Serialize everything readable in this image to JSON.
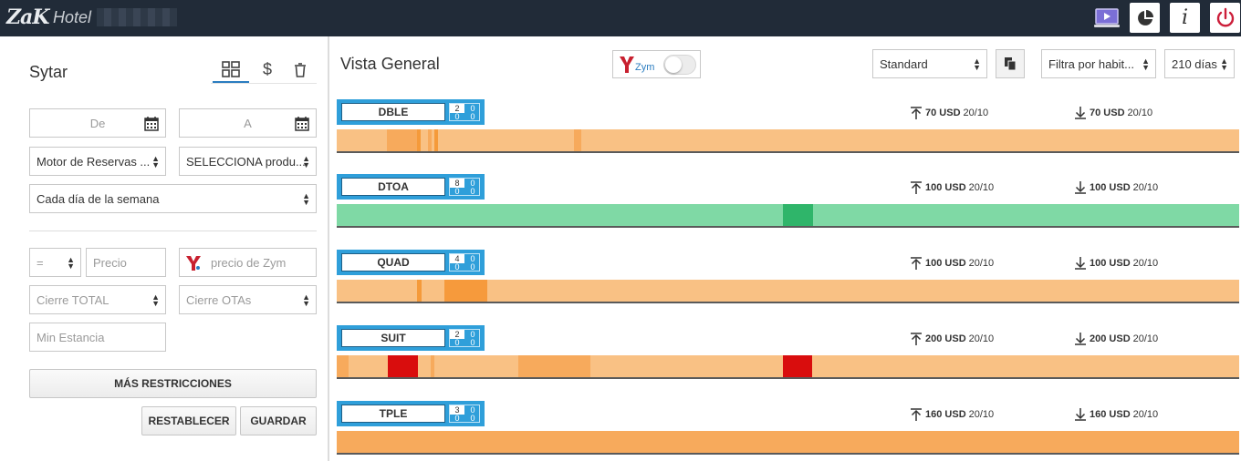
{
  "app": {
    "logo_text": "ZaK",
    "hotel_label": "Hotel"
  },
  "topbar": {
    "buttons": [
      {
        "name": "video-tutorial-button",
        "icon": "monitor-play-icon"
      },
      {
        "name": "reports-button",
        "icon": "pie-chart-icon"
      },
      {
        "name": "info-button",
        "icon": "info-icon",
        "label": "i"
      },
      {
        "name": "logout-button",
        "icon": "power-icon"
      }
    ]
  },
  "left_panel": {
    "title": "Sytar",
    "tabs": [
      {
        "name": "grid-view-tab",
        "icon": "grid-icon",
        "active": true
      },
      {
        "name": "rates-tab",
        "icon": "dollar-icon",
        "label": "$",
        "active": false
      },
      {
        "name": "delete-tab",
        "icon": "trash-icon",
        "active": false
      }
    ],
    "date_from_placeholder": "De",
    "date_to_placeholder": "A",
    "booking_engine_select": "Motor de Reservas ...",
    "product_select": "SELECCIONA produ...",
    "weekday_select": "Cada día de la semana",
    "operator_select": "=",
    "price_placeholder": "Precio",
    "zym_price_placeholder": "precio de Zym",
    "closure_total_select": "Cierre TOTAL",
    "closure_otas_select": "Cierre OTAs",
    "min_stay_placeholder": "Min Estancia",
    "more_restrictions_label": "MÁS RESTRICCIONES",
    "reset_label": "RESTABLECER",
    "save_label": "GUARDAR"
  },
  "main": {
    "title": "Vista General",
    "zym_toggle_label": "Zym",
    "zym_toggle_on": false,
    "view_select": "Standard",
    "room_filter_select": "Filtra por habit...",
    "days_select": "210 días"
  },
  "colors": {
    "topbar": "#212b38",
    "accent_blue": "#2f9fda",
    "orange_light": "#f9c184",
    "orange_mid": "#f7aa5c",
    "orange_dark": "#f69a3c",
    "green_light": "#7fd9a5",
    "green_dark": "#2fb56a",
    "red": "#d90d0d",
    "power_red": "#cc1e3a"
  },
  "rooms": [
    {
      "name": "DBLE",
      "count": "2",
      "c1": "0",
      "c2": "0",
      "c3": "0",
      "max_price": "70 USD",
      "max_date": "20/10",
      "min_price": "70 USD",
      "min_date": "20/10",
      "base_color": "#f9c184",
      "segments": [
        {
          "start_pct": 5.6,
          "width_pct": 3.3,
          "color": "#f7aa5c"
        },
        {
          "start_pct": 8.9,
          "width_pct": 0.4,
          "color": "#f59a3a"
        },
        {
          "start_pct": 10.1,
          "width_pct": 0.4,
          "color": "#f7aa5c"
        },
        {
          "start_pct": 10.8,
          "width_pct": 0.4,
          "color": "#f59a3a"
        },
        {
          "start_pct": 26.3,
          "width_pct": 0.8,
          "color": "#f7aa5c"
        }
      ]
    },
    {
      "name": "DTOA",
      "count": "8",
      "c1": "0",
      "c2": "0",
      "c3": "0",
      "max_price": "100 USD",
      "max_date": "20/10",
      "min_price": "100 USD",
      "min_date": "20/10",
      "base_color": "#7fd9a5",
      "segments": [
        {
          "start_pct": 49.4,
          "width_pct": 3.4,
          "color": "#2fb56a"
        }
      ]
    },
    {
      "name": "QUAD",
      "count": "4",
      "c1": "0",
      "c2": "0",
      "c3": "0",
      "max_price": "100 USD",
      "max_date": "20/10",
      "min_price": "100 USD",
      "min_date": "20/10",
      "base_color": "#f9c184",
      "segments": [
        {
          "start_pct": 8.9,
          "width_pct": 0.5,
          "color": "#f59a3a"
        },
        {
          "start_pct": 11.9,
          "width_pct": 4.8,
          "color": "#f69a3c"
        }
      ]
    },
    {
      "name": "SUIT",
      "count": "2",
      "c1": "0",
      "c2": "0",
      "c3": "0",
      "max_price": "200 USD",
      "max_date": "20/10",
      "min_price": "200 USD",
      "min_date": "20/10",
      "base_color": "#f9c184",
      "segments": [
        {
          "start_pct": 0,
          "width_pct": 1.3,
          "color": "#f7aa5c"
        },
        {
          "start_pct": 5.7,
          "width_pct": 3.3,
          "color": "#d90d0d"
        },
        {
          "start_pct": 10.4,
          "width_pct": 0.4,
          "color": "#f7aa5c"
        },
        {
          "start_pct": 20.1,
          "width_pct": 8.0,
          "color": "#f7aa5c"
        },
        {
          "start_pct": 49.4,
          "width_pct": 3.3,
          "color": "#d90d0d"
        }
      ]
    },
    {
      "name": "TPLE",
      "count": "3",
      "c1": "0",
      "c2": "0",
      "c3": "0",
      "max_price": "160 USD",
      "max_date": "20/10",
      "min_price": "160 USD",
      "min_date": "20/10",
      "base_color": "#f7aa5c",
      "segments": []
    }
  ]
}
